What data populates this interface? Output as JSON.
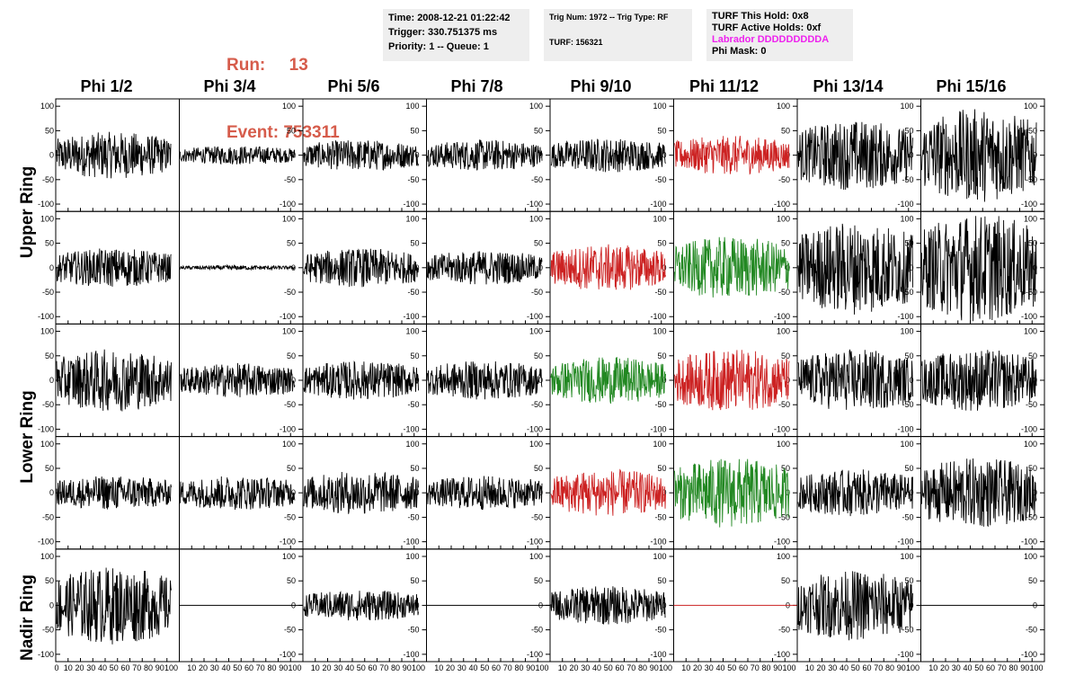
{
  "header": {
    "run_label": "Run:",
    "run_value": "13",
    "event_label": "Event:",
    "event_value": "753311",
    "time": "Time: 2008-12-21 01:22:42",
    "trigger": "Trigger: 330.751375 ms",
    "priority": "Priority: 1 -- Queue: 1",
    "trig_num": "Trig Num: 1972 -- Trig Type: RF",
    "turf": "TURF: 156321",
    "turf_hold": "TURF This Hold: 0x8",
    "turf_active": "TURF Active Holds: 0xf",
    "labrador": "Labrador DDDDDDDDDA",
    "phi_mask": "Phi Mask: 0"
  },
  "colors": {
    "run_text": "#d65c4b",
    "labrador": "#ee22ee",
    "trace_black": "#000000",
    "trace_red": "#cc2222",
    "trace_green": "#228822"
  },
  "columns": [
    "Phi 1/2",
    "Phi 3/4",
    "Phi 5/6",
    "Phi 7/8",
    "Phi 9/10",
    "Phi 11/12",
    "Phi 13/14",
    "Phi 15/16"
  ],
  "rows": [
    "Upper Ring",
    "Lower Ring",
    "Nadir Ring"
  ],
  "chart_data": {
    "type": "line",
    "description_grid": "5 rows x 8 columns of waveform panels",
    "y_ticks": [
      100,
      50,
      0,
      -50,
      -100
    ],
    "x_ticks": [
      0,
      10,
      20,
      30,
      40,
      50,
      60,
      70,
      80,
      90,
      100
    ],
    "xlim": [
      0,
      100
    ],
    "ylim": [
      -115,
      115
    ],
    "panels": [
      [
        {
          "a": 30,
          "c": "k"
        },
        {
          "a": 12,
          "c": "k"
        },
        {
          "a": 20,
          "c": "k"
        },
        {
          "a": 20,
          "c": "k"
        },
        {
          "a": 22,
          "c": "k"
        },
        {
          "a": 25,
          "c": "r"
        },
        {
          "a": 45,
          "c": "k"
        },
        {
          "a": 60,
          "c": "k"
        }
      ],
      [
        {
          "a": 25,
          "c": "k"
        },
        {
          "a": 3,
          "c": "k"
        },
        {
          "a": 25,
          "c": "k"
        },
        {
          "a": 22,
          "c": "k"
        },
        {
          "a": 30,
          "c": "r"
        },
        {
          "a": 40,
          "c": "g"
        },
        {
          "a": 60,
          "c": "k"
        },
        {
          "a": 70,
          "c": "k"
        }
      ],
      [
        {
          "a": 40,
          "c": "k"
        },
        {
          "a": 22,
          "c": "k"
        },
        {
          "a": 25,
          "c": "k"
        },
        {
          "a": 25,
          "c": "k"
        },
        {
          "a": 30,
          "c": "g"
        },
        {
          "a": 40,
          "c": "r"
        },
        {
          "a": 40,
          "c": "k"
        },
        {
          "a": 40,
          "c": "k"
        }
      ],
      [
        {
          "a": 22,
          "c": "k"
        },
        {
          "a": 22,
          "c": "k"
        },
        {
          "a": 28,
          "c": "k"
        },
        {
          "a": 22,
          "c": "k"
        },
        {
          "a": 30,
          "c": "r"
        },
        {
          "a": 45,
          "c": "g"
        },
        {
          "a": 30,
          "c": "k"
        },
        {
          "a": 45,
          "c": "k"
        }
      ],
      [
        {
          "a": 50,
          "c": "k"
        },
        {
          "a": 0,
          "c": "k"
        },
        {
          "a": 20,
          "c": "k"
        },
        {
          "a": 0,
          "c": "k"
        },
        {
          "a": 25,
          "c": "k"
        },
        {
          "a": 0,
          "c": "r"
        },
        {
          "a": 45,
          "c": "k"
        },
        {
          "a": 0,
          "c": "k"
        }
      ]
    ]
  }
}
